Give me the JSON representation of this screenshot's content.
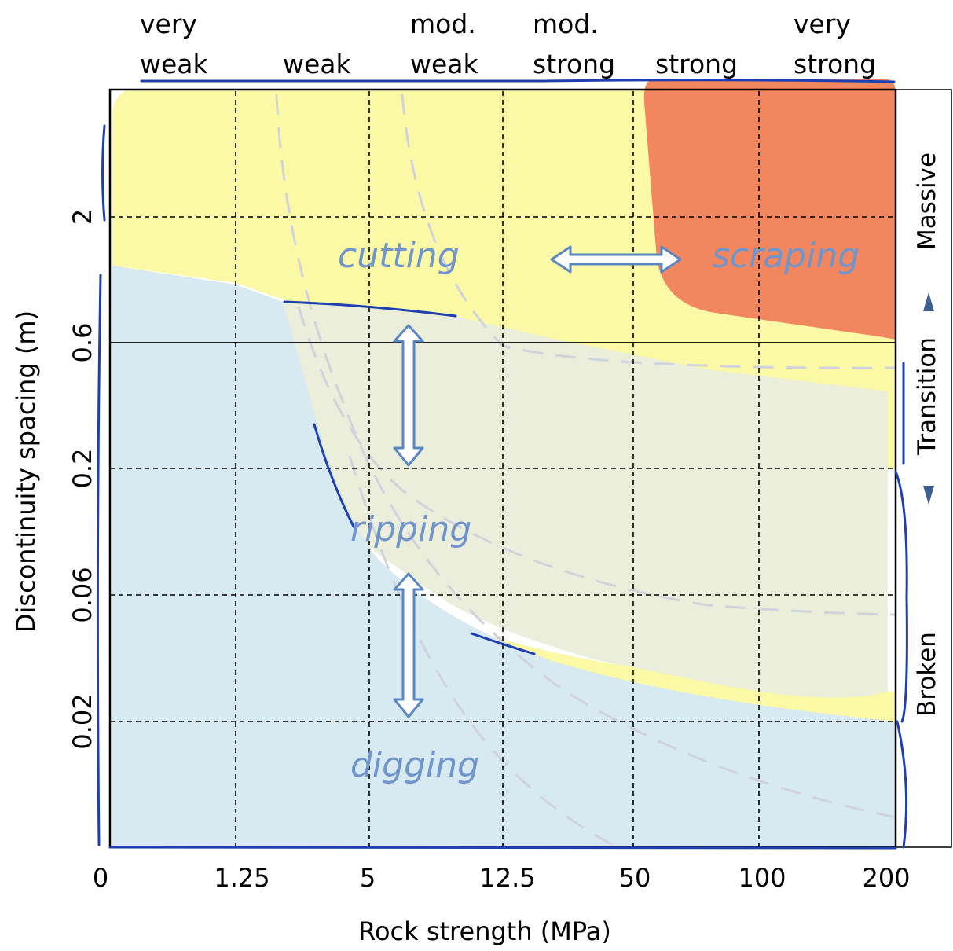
{
  "strength_classes": [
    "very weak",
    "weak",
    "mod. weak",
    "mod. strong",
    "strong",
    "very strong"
  ],
  "x_axis": {
    "title": "Rock strength (MPa)",
    "ticks": [
      "0",
      "1.25",
      "5",
      "12.5",
      "50",
      "100",
      "200"
    ]
  },
  "y_axis": {
    "title": "Discontinuity spacing (m)",
    "ticks": [
      "2",
      "0.6",
      "0.2",
      "0.06",
      "0.02"
    ]
  },
  "regions": {
    "cutting": "cutting",
    "scraping": "scraping",
    "ripping": "ripping",
    "digging": "digging"
  },
  "rock_mass": {
    "massive": "Massive",
    "transition": "Transition",
    "broken": "Broken"
  },
  "colors": {
    "cutting_zone": "#fbf9a6",
    "scraping_zone": "#f2865e",
    "ripping_zone": "#eaeeda",
    "digging_zone": "#d7e9f1",
    "region_text": "#6f95cc",
    "arrow_stroke": "#5b86c4",
    "pen_annotation": "#1d3fb0"
  }
}
